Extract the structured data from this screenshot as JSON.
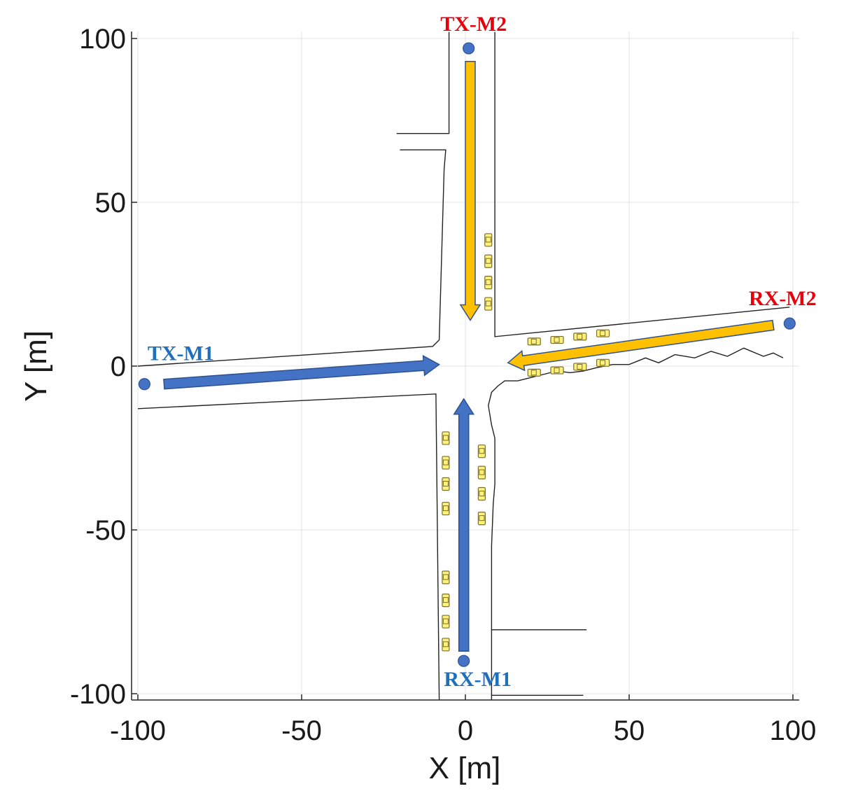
{
  "chart_data": {
    "type": "scatter",
    "title": "",
    "xlabel": "X [m]",
    "ylabel": "Y [m]",
    "xlim": [
      -102,
      102
    ],
    "ylim": [
      -102,
      102
    ],
    "xticks": [
      -100,
      -50,
      0,
      50,
      100
    ],
    "yticks": [
      -100,
      -50,
      0,
      50,
      100
    ],
    "xtick_labels": [
      "-100",
      "-50",
      "0",
      "50",
      "100"
    ],
    "ytick_labels": [
      "-100",
      "-50",
      "0",
      "50",
      "100"
    ],
    "grid": true,
    "nodes": [
      {
        "label": "TX-M1",
        "x": -98,
        "y": -5.5,
        "color": "#1f6fbf"
      },
      {
        "label": "TX-M2",
        "x": 1,
        "y": 97,
        "color": "#e8000b"
      },
      {
        "label": "RX-M1",
        "x": -0.5,
        "y": -90,
        "color": "#1f6fbf"
      },
      {
        "label": "RX-M2",
        "x": 99,
        "y": 13,
        "color": "#e8000b"
      }
    ],
    "trajectories": [
      {
        "name": "M1-horizontal",
        "from": [
          -92,
          -5.5
        ],
        "to": [
          -8,
          0.5
        ],
        "color": "#4472c4"
      },
      {
        "name": "M1-vertical",
        "from": [
          -0.5,
          -87
        ],
        "to": [
          -0.5,
          -10
        ],
        "color": "#4472c4"
      },
      {
        "name": "M2-vertical",
        "from": [
          1.5,
          93
        ],
        "to": [
          1.5,
          14
        ],
        "color": "#ffc000"
      },
      {
        "name": "M2-horizontal",
        "from": [
          94,
          12.5
        ],
        "to": [
          13,
          1
        ],
        "color": "#ffc000"
      }
    ],
    "roads": [
      [
        [
          -100,
          0
        ],
        [
          -10,
          6
        ],
        [
          -8,
          8
        ],
        [
          -6.5,
          60
        ],
        [
          -6,
          66
        ],
        [
          -20,
          66
        ]
      ],
      [
        [
          -21,
          71
        ],
        [
          -5,
          71
        ],
        [
          -5,
          102
        ]
      ],
      [
        [
          9,
          102
        ],
        [
          9,
          9
        ],
        [
          99,
          18
        ]
      ],
      [
        [
          -100,
          -13
        ],
        [
          -9,
          -8.5
        ],
        [
          -8,
          -102
        ]
      ],
      [
        [
          8,
          -102
        ],
        [
          8,
          -80.5
        ],
        [
          37,
          -80.5
        ]
      ],
      [
        [
          8,
          -100.5
        ],
        [
          36,
          -100.5
        ]
      ],
      [
        [
          97,
          2.5
        ],
        [
          94,
          4
        ],
        [
          91,
          3
        ],
        [
          85,
          5.5
        ],
        [
          80,
          3
        ],
        [
          75,
          4.5
        ],
        [
          70,
          2.5
        ],
        [
          64,
          3.5
        ],
        [
          59,
          1
        ],
        [
          55,
          2.5
        ],
        [
          50,
          0.5
        ],
        [
          45,
          0.5
        ],
        [
          40,
          -0.5
        ],
        [
          36,
          -1.5
        ],
        [
          32,
          -2
        ],
        [
          28,
          -1.5
        ],
        [
          22,
          -3
        ],
        [
          16,
          -4.5
        ],
        [
          12,
          -4.5
        ],
        [
          10,
          -6
        ],
        [
          8,
          -8
        ],
        [
          7,
          -12
        ],
        [
          8,
          -18
        ],
        [
          9,
          -22
        ],
        [
          9,
          -30
        ],
        [
          9,
          -36
        ],
        [
          8.5,
          -42
        ],
        [
          8,
          -55
        ],
        [
          8,
          -80.5
        ]
      ]
    ],
    "cars": {
      "vertical": [
        [
          7,
          38.5
        ],
        [
          7,
          32
        ],
        [
          7,
          25.5
        ],
        [
          7,
          19
        ],
        [
          -6,
          -22
        ],
        [
          -6,
          -29.5
        ],
        [
          -6,
          -36
        ],
        [
          -6,
          -43.5
        ],
        [
          5,
          -26
        ],
        [
          5,
          -32.5
        ],
        [
          5,
          -39
        ],
        [
          5,
          -46.5
        ],
        [
          -6,
          -64.5
        ],
        [
          -6,
          -71.5
        ],
        [
          -6,
          -78
        ],
        [
          -6,
          -85
        ]
      ],
      "horizontal": [
        [
          21,
          7.5
        ],
        [
          28,
          8
        ],
        [
          35,
          9
        ],
        [
          42,
          10
        ],
        [
          21,
          -2
        ],
        [
          28,
          -1.3
        ],
        [
          35,
          -0.2
        ],
        [
          42,
          1
        ]
      ]
    }
  }
}
